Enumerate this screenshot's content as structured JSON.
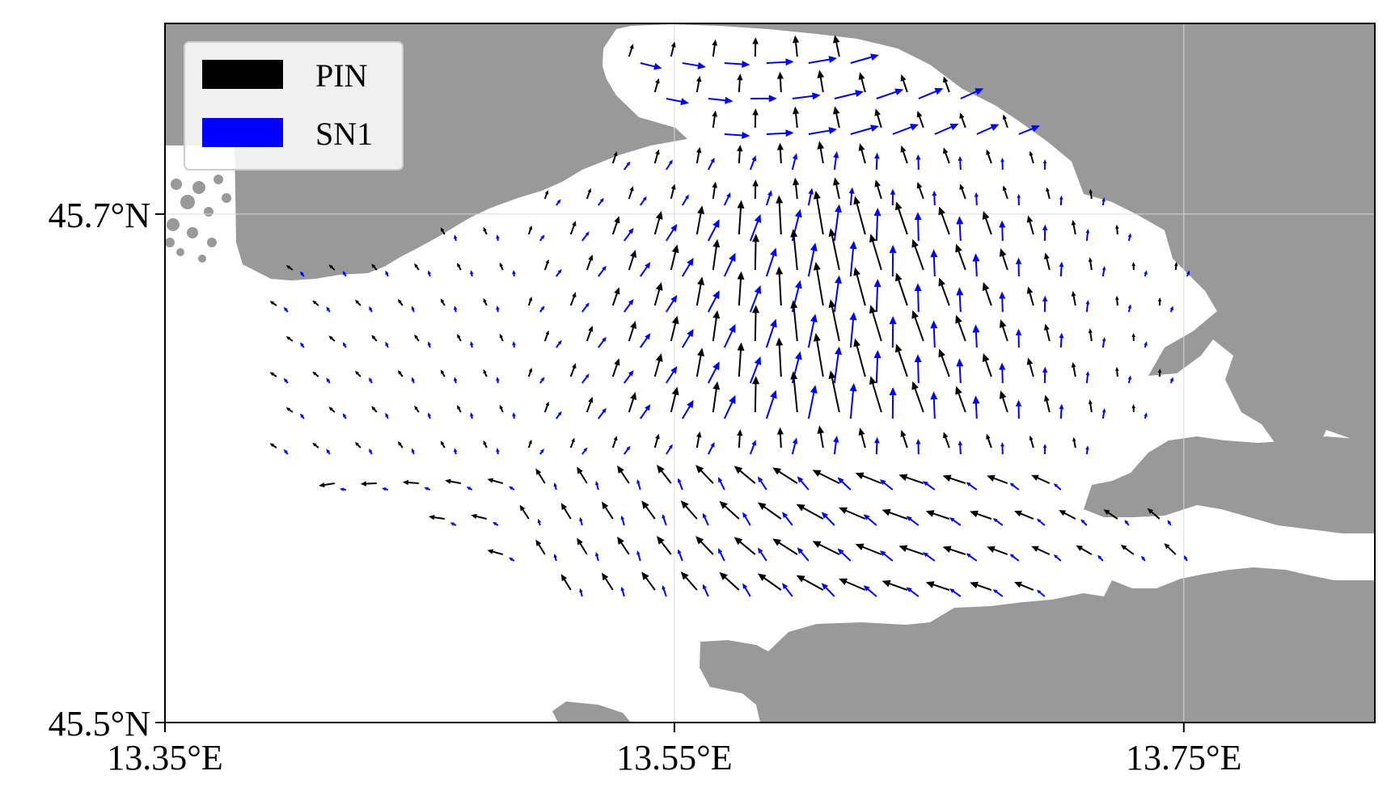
{
  "map": {
    "extent": {
      "lon": [
        13.35,
        13.825
      ],
      "lat": [
        45.5,
        45.775
      ]
    },
    "axes": {
      "x_ticks": [
        {
          "value": 13.35,
          "label": "13.35°E"
        },
        {
          "value": 13.55,
          "label": "13.55°E"
        },
        {
          "value": 13.75,
          "label": "13.75°E"
        }
      ],
      "y_ticks": [
        {
          "value": 45.5,
          "label": "45.5°N"
        },
        {
          "value": 45.7,
          "label": "45.7°N"
        }
      ],
      "grid": true
    },
    "colors": {
      "land": "#999999",
      "sea": "#ffffff",
      "grid": "#d9d9d9",
      "frame": "#000000"
    },
    "legend": {
      "placement": "top-left",
      "items": [
        {
          "label": "PIN",
          "color": "#000000"
        },
        {
          "label": "SN1",
          "color": "#0000ff"
        }
      ]
    },
    "series": [
      {
        "name": "PIN",
        "color": "#000000"
      },
      {
        "name": "SN1",
        "color": "#0000ff"
      }
    ]
  }
}
